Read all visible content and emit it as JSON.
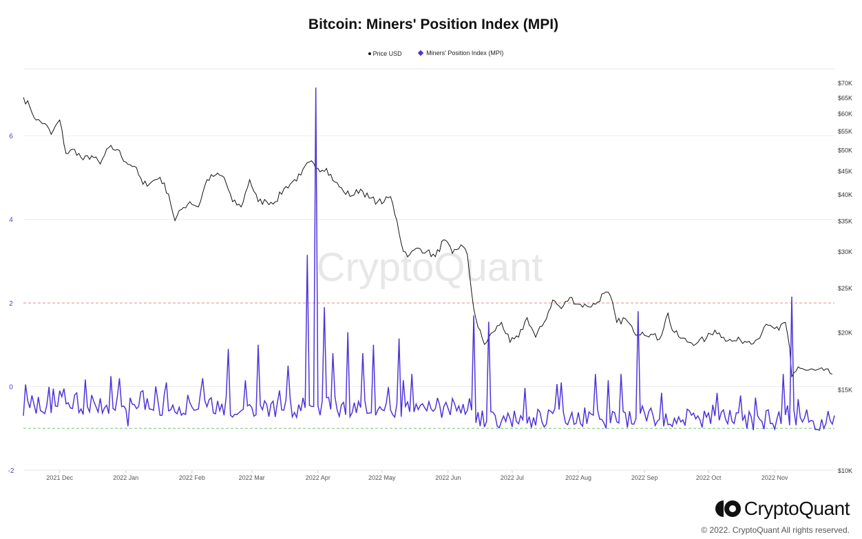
{
  "chart_data": {
    "type": "line",
    "title": "Bitcoin: Miners' Position Index (MPI)",
    "watermark": "CryptoQuant",
    "legend": [
      "Price USD",
      "Miners' Position Index (MPI)"
    ],
    "colors": {
      "price": "#111111",
      "mpi": "#4f33d8",
      "upper_line": "#e48a8a",
      "lower_line": "#6cc56c",
      "watermark": "#e2e2e2"
    },
    "x_ticks": [
      "2021 Dec",
      "2022 Jan",
      "2022 Feb",
      "2022 Mar",
      "2022 Apr",
      "2022 May",
      "2022 Jun",
      "2022 Jul",
      "2022 Aug",
      "2022 Sep",
      "2022 Oct",
      "2022 Nov"
    ],
    "left_axis": {
      "ticks": [
        "6",
        "4",
        "2",
        "0",
        "-2"
      ],
      "range": [
        -2,
        7.6
      ]
    },
    "right_axis": {
      "scale": "log",
      "ticks": [
        "$70K",
        "$65K",
        "$60K",
        "$55K",
        "$50K",
        "$45K",
        "$40K",
        "$35K",
        "$30K",
        "$25K",
        "$20K",
        "$15K",
        "$10K"
      ],
      "range": [
        10000,
        70000
      ]
    },
    "reference_lines": [
      {
        "y": 2,
        "style": "dashed",
        "color": "upper_line"
      },
      {
        "y": -1,
        "style": "dashed",
        "color": "lower_line"
      }
    ],
    "x_range": [
      "2021-11-14",
      "2022-11-29"
    ],
    "series": [
      {
        "name": "Price USD",
        "axis": "right",
        "points": [
          [
            "2021-11-14",
            65000
          ],
          [
            "2021-11-17",
            62000
          ],
          [
            "2021-11-20",
            58000
          ],
          [
            "2021-11-24",
            57000
          ],
          [
            "2021-11-27",
            54000
          ],
          [
            "2021-12-01",
            58000
          ],
          [
            "2021-12-04",
            49000
          ],
          [
            "2021-12-08",
            50000
          ],
          [
            "2021-12-12",
            47500
          ],
          [
            "2021-12-16",
            48500
          ],
          [
            "2021-12-20",
            46500
          ],
          [
            "2021-12-24",
            50500
          ],
          [
            "2021-12-28",
            50000
          ],
          [
            "2022-01-01",
            47000
          ],
          [
            "2022-01-05",
            46000
          ],
          [
            "2022-01-09",
            42000
          ],
          [
            "2022-01-13",
            42500
          ],
          [
            "2022-01-17",
            43500
          ],
          [
            "2022-01-21",
            40000
          ],
          [
            "2022-01-24",
            35000
          ],
          [
            "2022-01-27",
            37000
          ],
          [
            "2022-01-31",
            38500
          ],
          [
            "2022-02-04",
            37500
          ],
          [
            "2022-02-08",
            43000
          ],
          [
            "2022-02-12",
            44000
          ],
          [
            "2022-02-16",
            43500
          ],
          [
            "2022-02-20",
            38500
          ],
          [
            "2022-02-24",
            37500
          ],
          [
            "2022-02-28",
            43000
          ],
          [
            "2022-03-04",
            38500
          ],
          [
            "2022-03-08",
            38500
          ],
          [
            "2022-03-12",
            38500
          ],
          [
            "2022-03-16",
            41000
          ],
          [
            "2022-03-20",
            42500
          ],
          [
            "2022-03-24",
            44000
          ],
          [
            "2022-03-28",
            47000
          ],
          [
            "2022-04-01",
            45500
          ],
          [
            "2022-04-05",
            45500
          ],
          [
            "2022-04-09",
            42500
          ],
          [
            "2022-04-13",
            40500
          ],
          [
            "2022-04-17",
            39700
          ],
          [
            "2022-04-21",
            41000
          ],
          [
            "2022-04-25",
            39200
          ],
          [
            "2022-04-29",
            38500
          ],
          [
            "2022-05-02",
            38500
          ],
          [
            "2022-05-05",
            39500
          ],
          [
            "2022-05-08",
            35000
          ],
          [
            "2022-05-11",
            30000
          ],
          [
            "2022-05-14",
            29500
          ],
          [
            "2022-05-18",
            30500
          ],
          [
            "2022-05-22",
            30000
          ],
          [
            "2022-05-26",
            29200
          ],
          [
            "2022-05-30",
            31800
          ],
          [
            "2022-06-03",
            29700
          ],
          [
            "2022-06-07",
            31000
          ],
          [
            "2022-06-10",
            29500
          ],
          [
            "2022-06-13",
            22500
          ],
          [
            "2022-06-15",
            20500
          ],
          [
            "2022-06-18",
            18800
          ],
          [
            "2022-06-22",
            20000
          ],
          [
            "2022-06-26",
            21000
          ],
          [
            "2022-06-30",
            19000
          ],
          [
            "2022-07-04",
            19500
          ],
          [
            "2022-07-08",
            21500
          ],
          [
            "2022-07-12",
            19500
          ],
          [
            "2022-07-16",
            21000
          ],
          [
            "2022-07-20",
            23500
          ],
          [
            "2022-07-24",
            22500
          ],
          [
            "2022-07-28",
            23800
          ],
          [
            "2022-08-01",
            23000
          ],
          [
            "2022-08-05",
            22800
          ],
          [
            "2022-08-09",
            23000
          ],
          [
            "2022-08-13",
            24300
          ],
          [
            "2022-08-16",
            24000
          ],
          [
            "2022-08-19",
            21000
          ],
          [
            "2022-08-23",
            21400
          ],
          [
            "2022-08-27",
            20000
          ],
          [
            "2022-08-31",
            20000
          ],
          [
            "2022-09-04",
            19800
          ],
          [
            "2022-09-08",
            19300
          ],
          [
            "2022-09-12",
            22000
          ],
          [
            "2022-09-14",
            20200
          ],
          [
            "2022-09-18",
            19400
          ],
          [
            "2022-09-22",
            19000
          ],
          [
            "2022-09-26",
            19000
          ],
          [
            "2022-09-30",
            19400
          ],
          [
            "2022-10-04",
            20200
          ],
          [
            "2022-10-08",
            19500
          ],
          [
            "2022-10-12",
            19100
          ],
          [
            "2022-10-16",
            19200
          ],
          [
            "2022-10-20",
            19100
          ],
          [
            "2022-10-24",
            19300
          ],
          [
            "2022-10-27",
            20500
          ],
          [
            "2022-10-31",
            20500
          ],
          [
            "2022-11-03",
            20200
          ],
          [
            "2022-11-06",
            21000
          ],
          [
            "2022-11-08",
            18500
          ],
          [
            "2022-11-09",
            16000
          ],
          [
            "2022-11-12",
            16800
          ],
          [
            "2022-11-16",
            16500
          ],
          [
            "2022-11-20",
            16500
          ],
          [
            "2022-11-24",
            16500
          ],
          [
            "2022-11-28",
            16200
          ]
        ]
      },
      {
        "name": "Miners' Position Index (MPI)",
        "axis": "left",
        "baseline": -0.5,
        "noise": 0.25,
        "spikes": [
          [
            "2021-11-15",
            0.05
          ],
          [
            "2021-11-28",
            -0.05
          ],
          [
            "2021-12-03",
            -0.05
          ],
          [
            "2021-12-09",
            -0.15
          ],
          [
            "2021-12-25",
            0.25
          ],
          [
            "2021-12-29",
            0.2
          ],
          [
            "2022-01-02",
            -0.95
          ],
          [
            "2022-01-20",
            0.1
          ],
          [
            "2022-01-30",
            -0.2
          ],
          [
            "2022-02-06",
            0.2
          ],
          [
            "2022-02-18",
            0.9
          ],
          [
            "2022-02-26",
            0.15
          ],
          [
            "2022-03-04",
            1.0
          ],
          [
            "2022-03-18",
            0.5
          ],
          [
            "2022-03-27",
            3.15
          ],
          [
            "2022-03-31",
            7.15
          ],
          [
            "2022-04-04",
            1.9
          ],
          [
            "2022-04-08",
            0.8
          ],
          [
            "2022-04-15",
            1.3
          ],
          [
            "2022-04-22",
            0.8
          ],
          [
            "2022-04-27",
            1.0
          ],
          [
            "2022-05-09",
            1.15
          ],
          [
            "2022-05-15",
            0.3
          ],
          [
            "2022-06-13",
            1.7
          ],
          [
            "2022-06-16",
            -0.95
          ],
          [
            "2022-06-20",
            1.55
          ],
          [
            "2022-06-24",
            -0.95
          ],
          [
            "2022-07-24",
            0.1
          ],
          [
            "2022-08-09",
            0.3
          ],
          [
            "2022-08-15",
            0.15
          ],
          [
            "2022-08-21",
            0.3
          ],
          [
            "2022-08-29",
            1.8
          ],
          [
            "2022-09-13",
            -0.9
          ],
          [
            "2022-10-05",
            -0.15
          ],
          [
            "2022-11-05",
            0.3
          ],
          [
            "2022-11-09",
            2.15
          ],
          [
            "2022-11-12",
            -0.3
          ],
          [
            "2022-11-17",
            -0.85
          ],
          [
            "2022-11-28",
            -0.9
          ]
        ]
      }
    ]
  },
  "brand": {
    "name": "CryptoQuant",
    "copyright": "© 2022. CryptoQuant All rights reserved."
  }
}
